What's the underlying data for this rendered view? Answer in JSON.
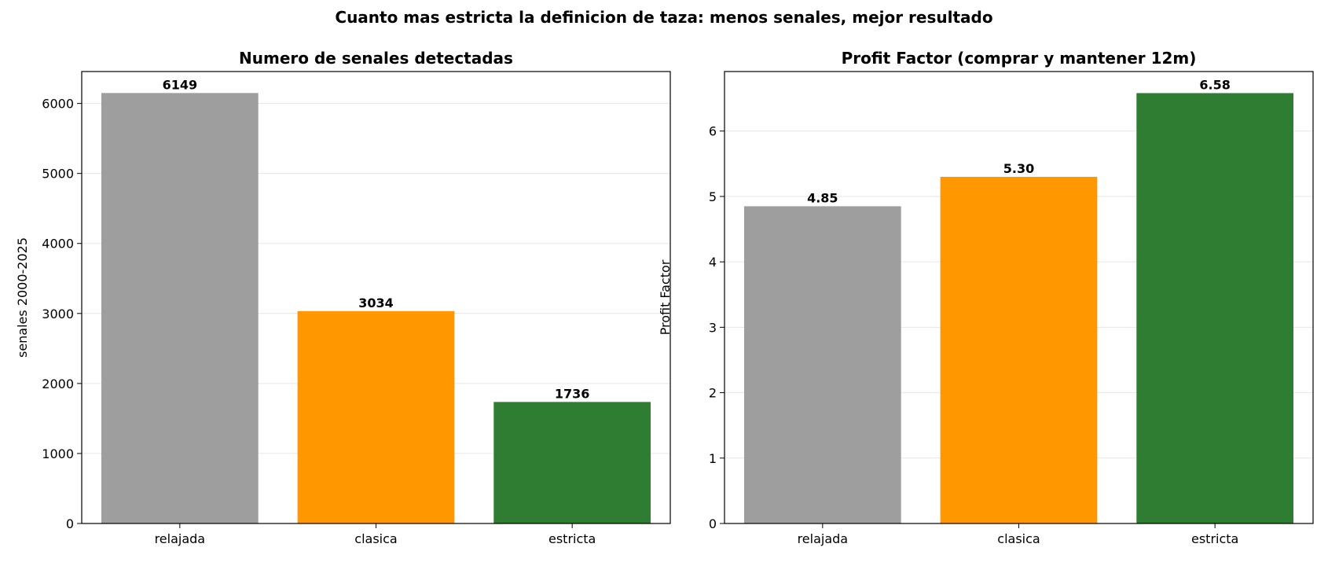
{
  "suptitle": "Cuanto mas estricta la definicion de taza: menos senales, mejor resultado",
  "chart_data": [
    {
      "type": "bar",
      "title": "Numero de senales detectadas",
      "xlabel": "",
      "ylabel": "senales 2000-2025",
      "categories": [
        "relajada",
        "clasica",
        "estricta"
      ],
      "values": [
        6149,
        3034,
        1736
      ],
      "value_labels": [
        "6149",
        "3034",
        "1736"
      ],
      "colors": [
        "#9e9e9e",
        "#ff9800",
        "#2e7d32"
      ],
      "ylim": [
        0,
        6456
      ],
      "yticks": [
        0,
        1000,
        2000,
        3000,
        4000,
        5000,
        6000
      ],
      "ytick_labels": [
        "0",
        "1000",
        "2000",
        "3000",
        "4000",
        "5000",
        "6000"
      ],
      "grid": "y"
    },
    {
      "type": "bar",
      "title": "Profit Factor (comprar y mantener 12m)",
      "xlabel": "",
      "ylabel": "Profit Factor",
      "categories": [
        "relajada",
        "clasica",
        "estricta"
      ],
      "values": [
        4.85,
        5.3,
        6.58
      ],
      "value_labels": [
        "4.85",
        "5.30",
        "6.58"
      ],
      "colors": [
        "#9e9e9e",
        "#ff9800",
        "#2e7d32"
      ],
      "ylim": [
        0,
        6.91
      ],
      "yticks": [
        0,
        1,
        2,
        3,
        4,
        5,
        6
      ],
      "ytick_labels": [
        "0",
        "1",
        "2",
        "3",
        "4",
        "5",
        "6"
      ],
      "grid": "y"
    }
  ]
}
